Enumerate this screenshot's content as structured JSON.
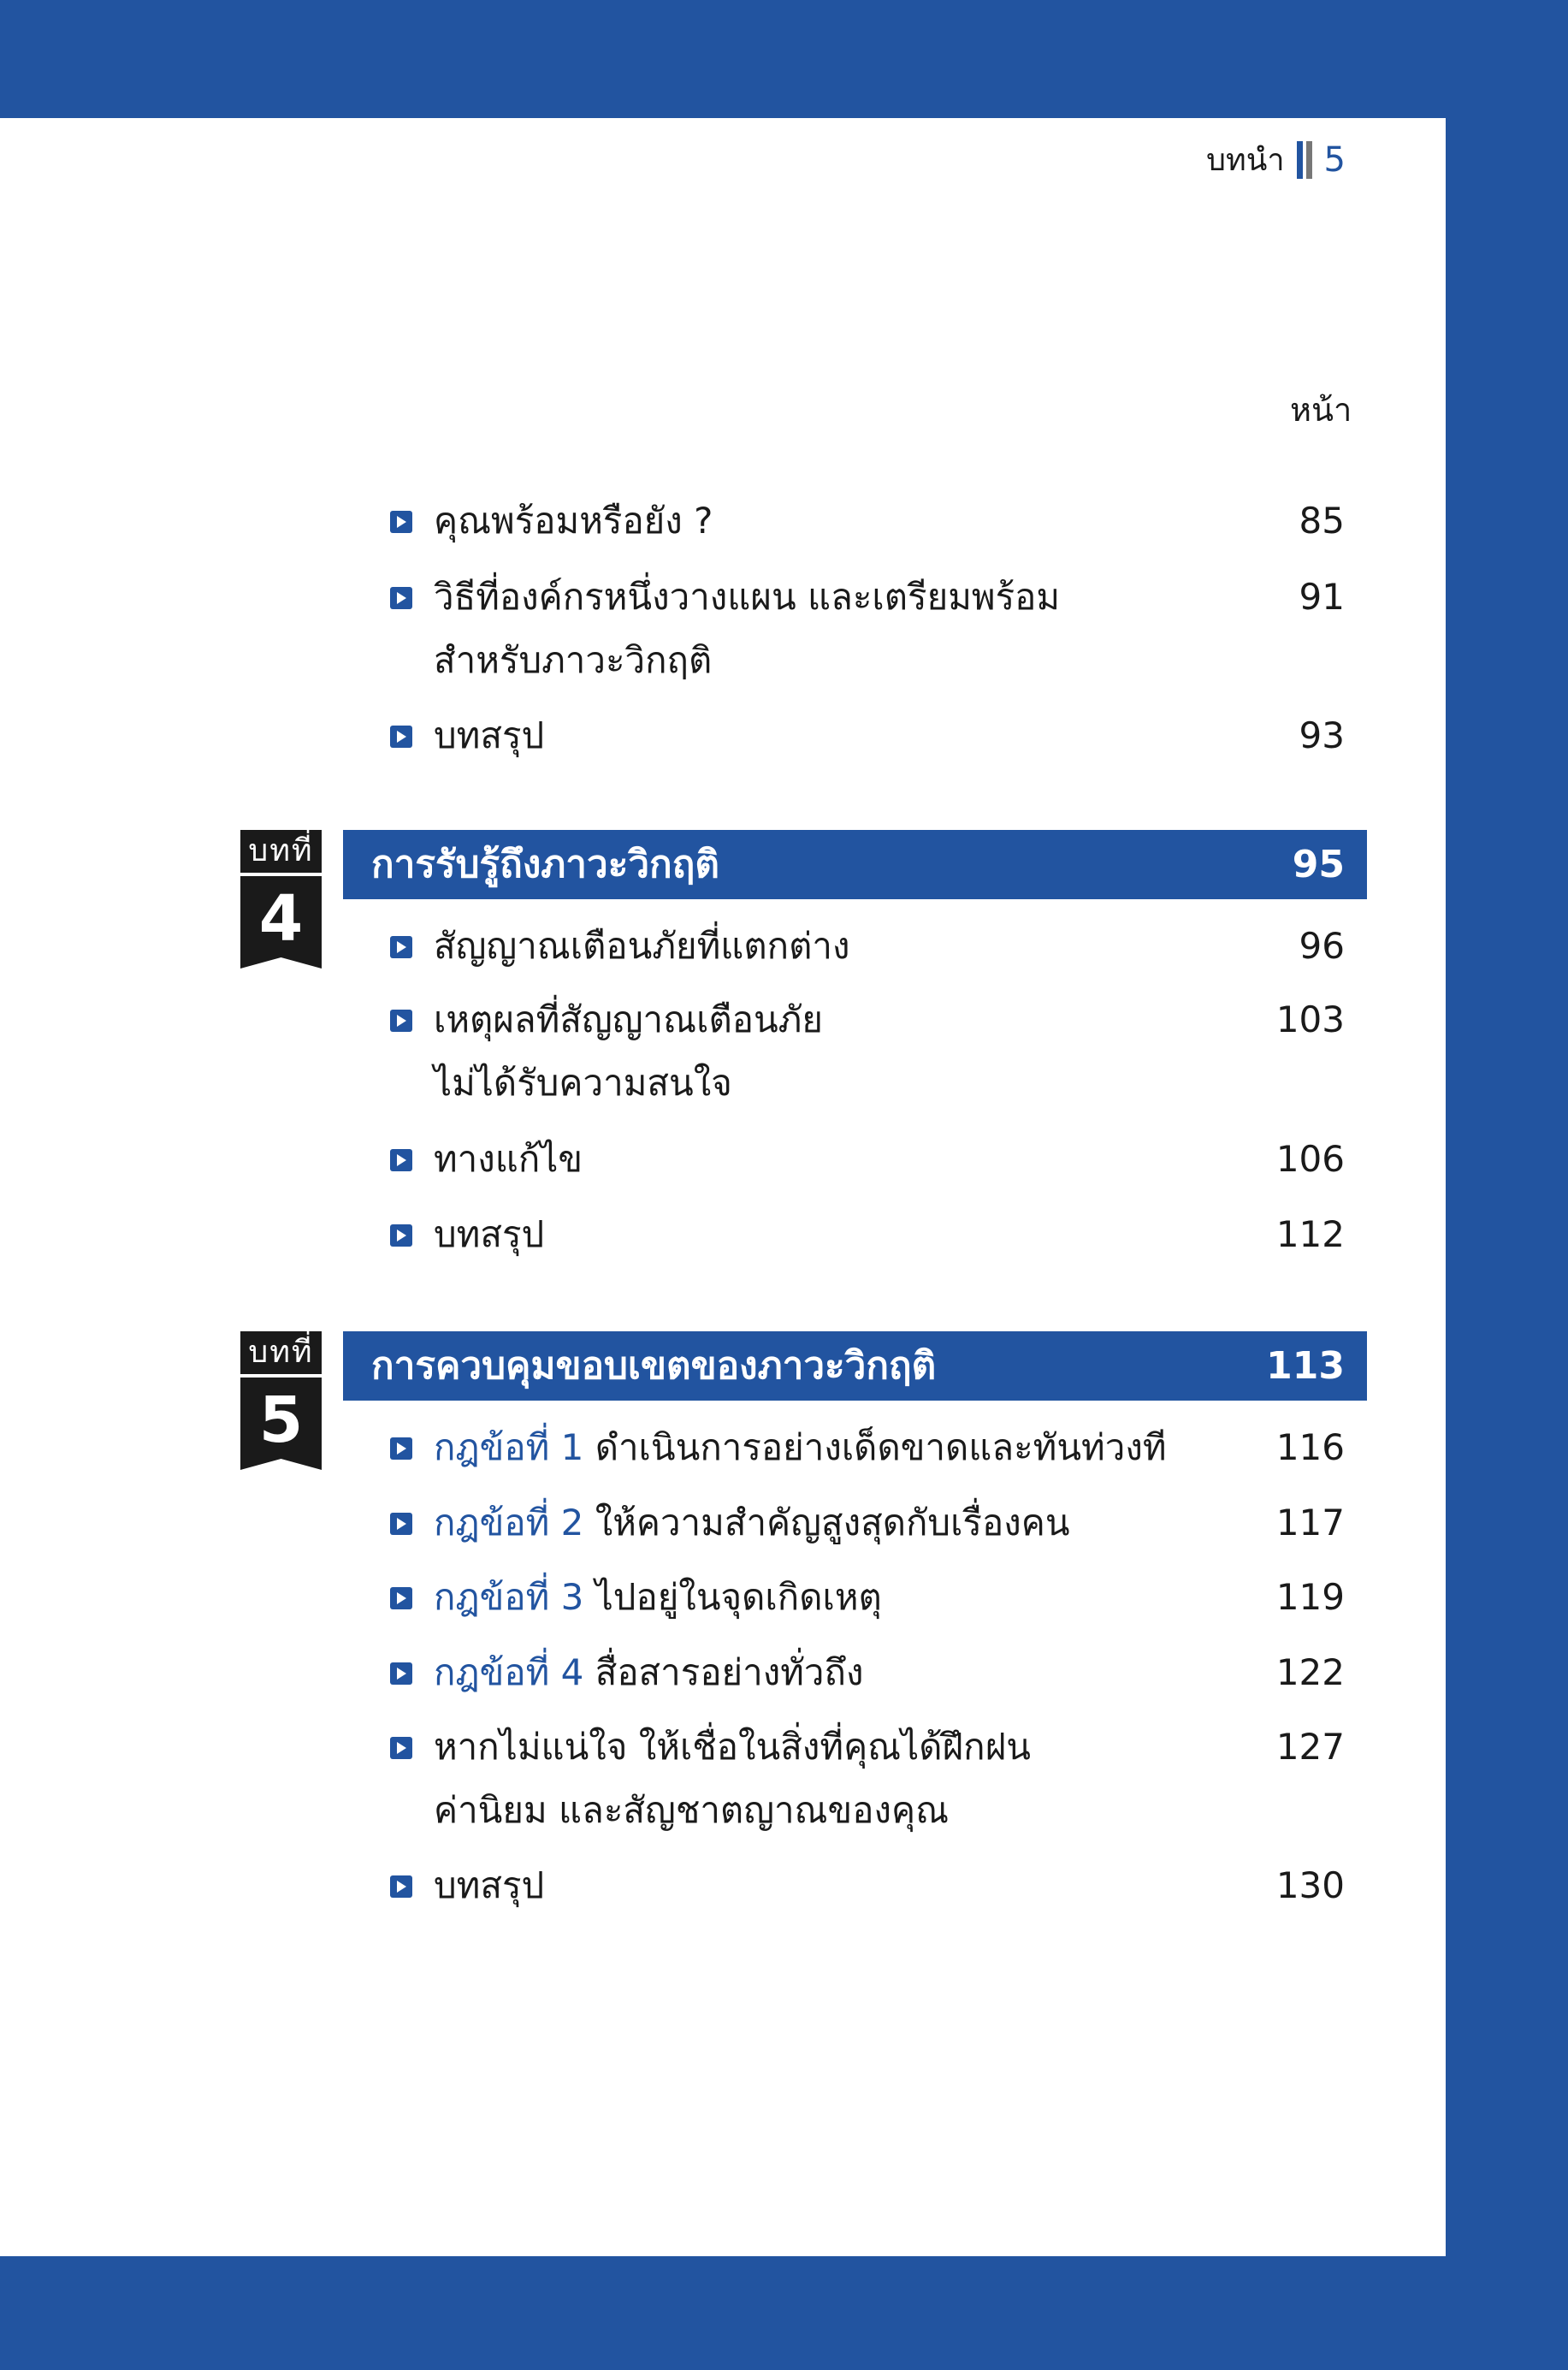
{
  "header": {
    "section": "บทนำ",
    "page_number": "5"
  },
  "page_column_label": "หน้า",
  "intro_items": [
    {
      "text": "คุณพร้อมหรือยัง ?",
      "page": "85"
    },
    {
      "text": "วิธีที่องค์กรหนึ่งวางแผน และเตรียมพร้อม",
      "text2": "สำหรับภาวะวิกฤติ",
      "page": "91"
    },
    {
      "text": "บทสรุป",
      "page": "93"
    }
  ],
  "chapters": [
    {
      "label": "บทที่",
      "number": "4",
      "title": "การรับรู้ถึงภาวะวิกฤติ",
      "page": "95",
      "items": [
        {
          "text": "สัญญาณเตือนภัยที่แตกต่าง",
          "page": "96"
        },
        {
          "text": "เหตุผลที่สัญญาณเตือนภัย",
          "text2": "ไม่ได้รับความสนใจ",
          "page": "103"
        },
        {
          "text": "ทางแก้ไข",
          "page": "106"
        },
        {
          "text": "บทสรุป",
          "page": "112"
        }
      ]
    },
    {
      "label": "บทที่",
      "number": "5",
      "title": "การควบคุมขอบเขตของภาวะวิกฤติ",
      "page": "113",
      "items": [
        {
          "prefix": "กฎข้อที่ 1",
          "text": "ดำเนินการอย่างเด็ดขาดและทันท่วงที",
          "page": "116"
        },
        {
          "prefix": "กฎข้อที่ 2",
          "text": "ให้ความสำคัญสูงสุดกับเรื่องคน",
          "page": "117"
        },
        {
          "prefix": "กฎข้อที่ 3",
          "text": "ไปอยู่ในจุดเกิดเหตุ",
          "page": "119"
        },
        {
          "prefix": "กฎข้อที่ 4",
          "text": "สื่อสารอย่างทั่วถึง",
          "page": "122"
        },
        {
          "text": "หากไม่แน่ใจ ให้เชื่อในสิ่งที่คุณได้ฝึกฝน",
          "text2": "ค่านิยม และสัญชาตญาณของคุณ",
          "page": "127"
        },
        {
          "text": "บทสรุป",
          "page": "130"
        }
      ]
    }
  ],
  "colors": {
    "brand_blue": "#2254a0",
    "badge_black": "#1a1a1a",
    "header_bar_gray": "#777777"
  }
}
